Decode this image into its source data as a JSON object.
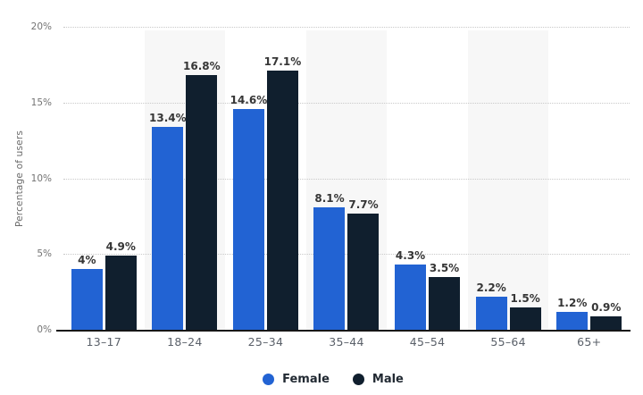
{
  "chart_data": {
    "type": "bar",
    "categories": [
      "13–17",
      "18–24",
      "25–34",
      "35–44",
      "45–54",
      "55–64",
      "65+"
    ],
    "series": [
      {
        "name": "Female",
        "color": "#2263d3",
        "values": [
          4,
          13.4,
          14.6,
          8.1,
          4.3,
          2.2,
          1.2
        ],
        "labels": [
          "4%",
          "13.4%",
          "14.6%",
          "8.1%",
          "4.3%",
          "2.2%",
          "1.2%"
        ]
      },
      {
        "name": "Male",
        "color": "#101f2e",
        "values": [
          4.9,
          16.8,
          17.1,
          7.7,
          3.5,
          1.5,
          0.9
        ],
        "labels": [
          "4.9%",
          "16.8%",
          "17.1%",
          "7.7%",
          "3.5%",
          "1.5%",
          "0.9%"
        ]
      }
    ],
    "ylabel": "Percentage of users",
    "ylim": [
      0,
      20
    ],
    "yticks": [
      {
        "value": 0,
        "label": "0%"
      },
      {
        "value": 5,
        "label": "5%"
      },
      {
        "value": 10,
        "label": "10%"
      },
      {
        "value": 15,
        "label": "15%"
      },
      {
        "value": 20,
        "label": "20%"
      }
    ],
    "grid": "horizontal-dotted",
    "legend_position": "bottom-center",
    "plot_background": "alternating-column-stripes",
    "colors": {
      "stripe": "#f7f7f7",
      "gridline": "#c9c9c9",
      "axis_line": "#161616",
      "tick_text": "#737373",
      "value_label_text": "#363636",
      "category_text": "#5a6069",
      "legend_text": "#222a33"
    }
  }
}
